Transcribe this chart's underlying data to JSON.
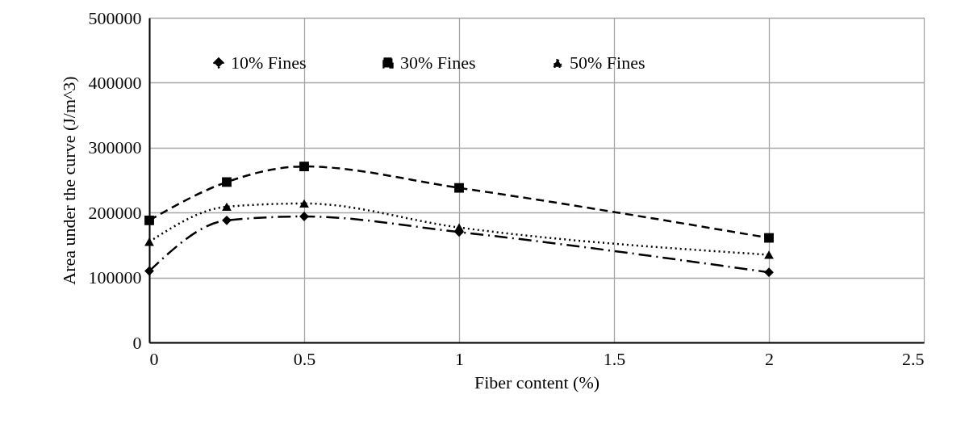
{
  "chart_data": {
    "type": "line",
    "xlabel": "Fiber content (%)",
    "ylabel": "Area under the curve (J/m^3)",
    "x": [
      0,
      0.25,
      0.5,
      1,
      2
    ],
    "series": [
      {
        "name": "10% Fines",
        "color": "#000000",
        "marker": "diamond",
        "line_style": "dashdot",
        "values": [
          110000,
          188000,
          194000,
          170000,
          108000
        ]
      },
      {
        "name": "30% Fines",
        "color": "#000000",
        "marker": "square",
        "line_style": "dashed",
        "values": [
          188000,
          247000,
          271000,
          238000,
          161000
        ]
      },
      {
        "name": "50% Fines",
        "color": "#000000",
        "marker": "triangle",
        "line_style": "dotted",
        "values": [
          155000,
          209000,
          214000,
          177000,
          135000
        ]
      }
    ],
    "xlim": [
      0,
      2.5
    ],
    "xticks": [
      0,
      0.5,
      1,
      1.5,
      2,
      2.5
    ],
    "ylim": [
      0,
      500000
    ],
    "yticks": [
      0,
      100000,
      200000,
      300000,
      400000,
      500000
    ],
    "grid": true,
    "legend": "top"
  }
}
